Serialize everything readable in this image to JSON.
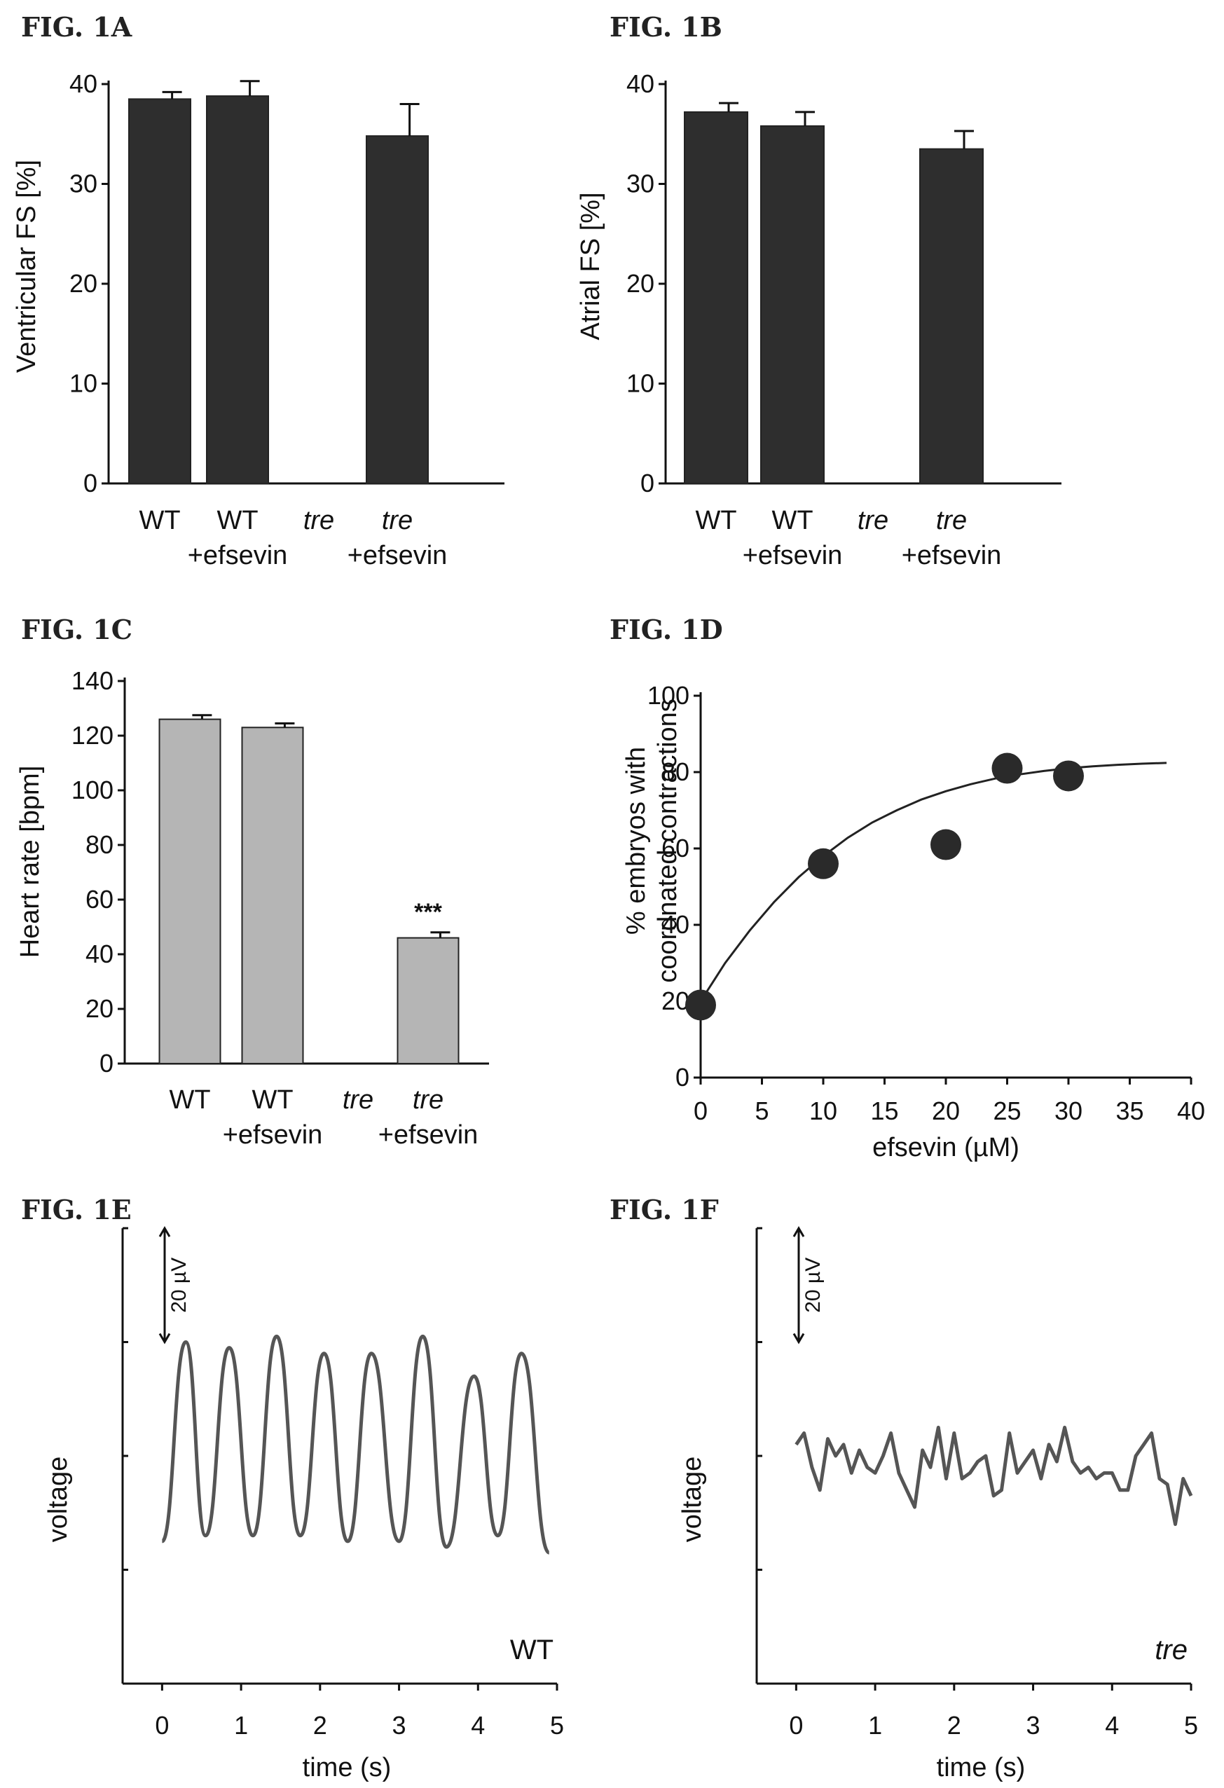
{
  "chart_data": [
    {
      "id": "1A",
      "type": "bar",
      "figure_label": "FIG. 1A",
      "ylabel": "Ventricular FS [%]",
      "ylim": [
        0,
        40
      ],
      "yticks": [
        "0",
        "10",
        "20",
        "30",
        "40"
      ],
      "categories": [
        {
          "line1": "WT",
          "line2": "",
          "italic": false
        },
        {
          "line1": "WT",
          "line2": "+efsevin",
          "italic": false
        },
        {
          "line1": "tre",
          "line2": "",
          "italic": true
        },
        {
          "line1": "tre",
          "line2": "+efsevin",
          "italic": true
        }
      ],
      "values": [
        38.5,
        38.8,
        0,
        34.8
      ],
      "errors": [
        0.7,
        1.5,
        0,
        3.2
      ],
      "bar_color": "#2e2e2e",
      "annotations": []
    },
    {
      "id": "1B",
      "type": "bar",
      "figure_label": "FIG. 1B",
      "ylabel": "Atrial FS [%]",
      "ylim": [
        0,
        40
      ],
      "yticks": [
        "0",
        "10",
        "20",
        "30",
        "40"
      ],
      "categories": [
        {
          "line1": "WT",
          "line2": "",
          "italic": false
        },
        {
          "line1": "WT",
          "line2": "+efsevin",
          "italic": false
        },
        {
          "line1": "tre",
          "line2": "",
          "italic": true
        },
        {
          "line1": "tre",
          "line2": "+efsevin",
          "italic": true
        }
      ],
      "values": [
        37.2,
        35.8,
        0,
        33.5
      ],
      "errors": [
        0.9,
        1.4,
        0,
        1.8
      ],
      "bar_color": "#2e2e2e",
      "annotations": []
    },
    {
      "id": "1C",
      "type": "bar",
      "figure_label": "FIG. 1C",
      "ylabel": "Heart rate [bpm]",
      "ylim": [
        0,
        140
      ],
      "yticks": [
        "0",
        "20",
        "40",
        "60",
        "80",
        "100",
        "120",
        "140"
      ],
      "categories": [
        {
          "line1": "WT",
          "line2": "",
          "italic": false
        },
        {
          "line1": "WT",
          "line2": "+efsevin",
          "italic": false
        },
        {
          "line1": "tre",
          "line2": "",
          "italic": true
        },
        {
          "line1": "tre",
          "line2": "+efsevin",
          "italic": true
        }
      ],
      "values": [
        126,
        123,
        0,
        46
      ],
      "errors": [
        1.5,
        1.5,
        0,
        2
      ],
      "bar_color": "#b5b5b5",
      "annotations": [
        "",
        "",
        "",
        "***"
      ]
    },
    {
      "id": "1D",
      "type": "scatter",
      "figure_label": "FIG. 1D",
      "ylabel_line1": "% embryos with",
      "ylabel_line2": "coordnated contractions",
      "xlabel": "efsevin (µM)",
      "xlim": [
        0,
        40
      ],
      "ylim": [
        0,
        100
      ],
      "xticks": [
        "0",
        "5",
        "10",
        "15",
        "20",
        "25",
        "30",
        "35",
        "40"
      ],
      "yticks": [
        "0",
        "20",
        "40",
        "60",
        "80",
        "100"
      ],
      "points": [
        {
          "x": 0,
          "y": 19
        },
        {
          "x": 10,
          "y": 56
        },
        {
          "x": 20,
          "y": 61
        },
        {
          "x": 25,
          "y": 81
        },
        {
          "x": 30,
          "y": 79
        }
      ],
      "fit_curve": [
        [
          0,
          20
        ],
        [
          2,
          30
        ],
        [
          4,
          38.5
        ],
        [
          6,
          46
        ],
        [
          8,
          52.5
        ],
        [
          10,
          58
        ],
        [
          12,
          62.8
        ],
        [
          14,
          66.8
        ],
        [
          16,
          70
        ],
        [
          18,
          72.8
        ],
        [
          20,
          75
        ],
        [
          22,
          76.8
        ],
        [
          24,
          78.3
        ],
        [
          26,
          79.4
        ],
        [
          28,
          80.3
        ],
        [
          30,
          81
        ],
        [
          32,
          81.5
        ],
        [
          34,
          81.9
        ],
        [
          36,
          82.2
        ],
        [
          38,
          82.4
        ]
      ],
      "marker_color": "#2a2a2a"
    },
    {
      "id": "1E",
      "type": "line",
      "figure_label": "FIG. 1E",
      "ylabel": "voltage",
      "xlabel": "time (s)",
      "corner_label": "WT",
      "corner_italic": false,
      "scale_label": "20 µV",
      "xlim": [
        -0.5,
        5
      ],
      "ylim": [
        -40,
        40
      ],
      "xticks": [
        "0",
        "1",
        "2",
        "3",
        "4",
        "5"
      ],
      "peaks": [
        {
          "t": 0.3,
          "v": 20
        },
        {
          "t": 0.85,
          "v": 19
        },
        {
          "t": 1.45,
          "v": 21
        },
        {
          "t": 2.05,
          "v": 18
        },
        {
          "t": 2.65,
          "v": 18
        },
        {
          "t": 3.3,
          "v": 21
        },
        {
          "t": 3.95,
          "v": 14
        },
        {
          "t": 4.55,
          "v": 18
        }
      ],
      "troughs": [
        {
          "t": 0.0,
          "v": -15
        },
        {
          "t": 0.55,
          "v": -14
        },
        {
          "t": 1.15,
          "v": -14
        },
        {
          "t": 1.75,
          "v": -14
        },
        {
          "t": 2.35,
          "v": -15
        },
        {
          "t": 3.0,
          "v": -15
        },
        {
          "t": 3.6,
          "v": -16
        },
        {
          "t": 4.25,
          "v": -14
        },
        {
          "t": 4.9,
          "v": -17
        }
      ],
      "line_color": "#555555"
    },
    {
      "id": "1F",
      "type": "line",
      "figure_label": "FIG. 1F",
      "ylabel": "voltage",
      "xlabel": "time (s)",
      "corner_label": "tre",
      "corner_italic": true,
      "scale_label": "20 µV",
      "xlim": [
        -0.5,
        5
      ],
      "ylim": [
        -40,
        40
      ],
      "xticks": [
        "0",
        "1",
        "2",
        "3",
        "4",
        "5"
      ],
      "series_points": [
        [
          0.0,
          2
        ],
        [
          0.1,
          4
        ],
        [
          0.2,
          -2
        ],
        [
          0.3,
          -6
        ],
        [
          0.4,
          3
        ],
        [
          0.5,
          0
        ],
        [
          0.6,
          2
        ],
        [
          0.7,
          -3
        ],
        [
          0.8,
          1
        ],
        [
          0.9,
          -2
        ],
        [
          1.0,
          -3
        ],
        [
          1.1,
          0
        ],
        [
          1.2,
          4
        ],
        [
          1.3,
          -3
        ],
        [
          1.4,
          -6
        ],
        [
          1.5,
          -9
        ],
        [
          1.6,
          1
        ],
        [
          1.7,
          -2
        ],
        [
          1.8,
          5
        ],
        [
          1.9,
          -4
        ],
        [
          2.0,
          4
        ],
        [
          2.1,
          -4
        ],
        [
          2.2,
          -3
        ],
        [
          2.3,
          -1
        ],
        [
          2.4,
          0
        ],
        [
          2.5,
          -7
        ],
        [
          2.6,
          -6
        ],
        [
          2.7,
          4
        ],
        [
          2.8,
          -3
        ],
        [
          2.9,
          -1
        ],
        [
          3.0,
          1
        ],
        [
          3.1,
          -4
        ],
        [
          3.2,
          2
        ],
        [
          3.3,
          -1
        ],
        [
          3.4,
          5
        ],
        [
          3.5,
          -1
        ],
        [
          3.6,
          -3
        ],
        [
          3.7,
          -2
        ],
        [
          3.8,
          -4
        ],
        [
          3.9,
          -3
        ],
        [
          4.0,
          -3
        ],
        [
          4.1,
          -6
        ],
        [
          4.2,
          -6
        ],
        [
          4.3,
          0
        ],
        [
          4.4,
          2
        ],
        [
          4.5,
          4
        ],
        [
          4.6,
          -4
        ],
        [
          4.7,
          -5
        ],
        [
          4.8,
          -12
        ],
        [
          4.9,
          -4
        ],
        [
          5.0,
          -7
        ]
      ],
      "line_color": "#555555"
    }
  ]
}
